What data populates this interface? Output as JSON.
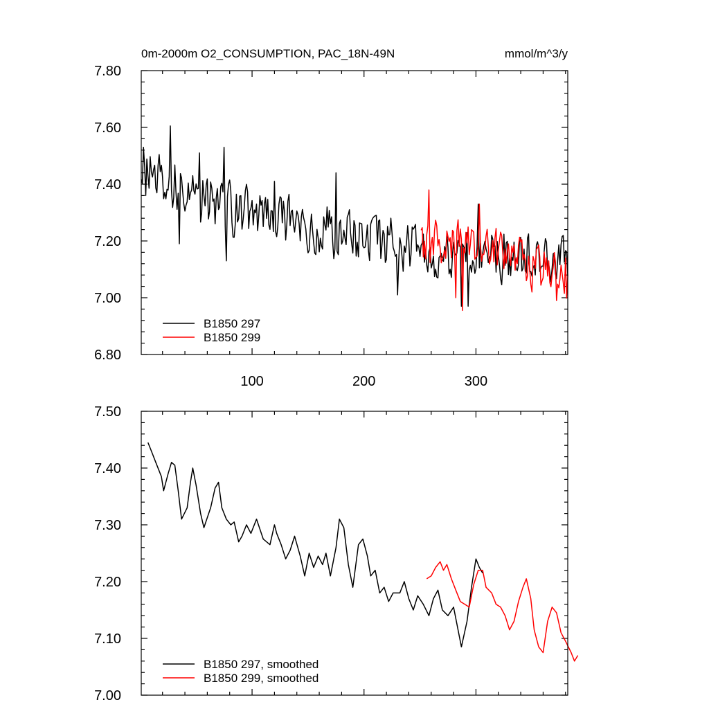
{
  "title": {
    "main": "0m-2000m O2_CONSUMPTION, PAC_18N-49N",
    "units": "mmol/m^3/y"
  },
  "chart_data": [
    {
      "type": "line",
      "panel": "top",
      "xlim": [
        1,
        382
      ],
      "ylim": [
        6.8,
        7.8
      ],
      "xticks": [
        100,
        200,
        300
      ],
      "xtick_labels": [
        "100",
        "200",
        "300"
      ],
      "yticks": [
        6.8,
        7.0,
        7.2,
        7.4,
        7.6,
        7.8
      ],
      "ytick_labels": [
        "6.80",
        "7.00",
        "7.20",
        "7.40",
        "7.60",
        "7.80"
      ],
      "legend": "bottom-left",
      "series": [
        {
          "name": "B1850 297",
          "color": "#000000",
          "x_start": 1,
          "trend": [
            [
              1,
              7.45
            ],
            [
              30,
              7.42
            ],
            [
              60,
              7.33
            ],
            [
              100,
              7.3
            ],
            [
              150,
              7.25
            ],
            [
              200,
              7.22
            ],
            [
              240,
              7.17
            ],
            [
              280,
              7.14
            ],
            [
              300,
              7.18
            ],
            [
              315,
              7.15
            ]
          ],
          "amplitude": 0.08,
          "seed": 297,
          "anchors": [
            [
              3,
              7.53
            ],
            [
              5,
              7.36
            ],
            [
              27,
              7.605
            ],
            [
              35,
              7.19
            ],
            [
              53,
              7.51
            ],
            [
              75,
              7.53
            ],
            [
              77,
              7.13
            ],
            [
              120,
              7.41
            ],
            [
              175,
              7.44
            ],
            [
              230,
              7.01
            ],
            [
              287,
              6.97
            ],
            [
              293,
              6.97
            ],
            [
              302,
              7.33
            ]
          ]
        },
        {
          "name": "B1850 299",
          "color": "#ff0000",
          "x_start": 251,
          "trend": [
            [
              251,
              7.2
            ],
            [
              300,
              7.19
            ],
            [
              340,
              7.13
            ],
            [
              382,
              7.07
            ]
          ],
          "amplitude": 0.07,
          "seed": 299,
          "anchors": [
            [
              258,
              7.38
            ],
            [
              282,
              7.0
            ],
            [
              288,
              6.955
            ],
            [
              303,
              7.33
            ],
            [
              350,
              7.02
            ],
            [
              372,
              6.99
            ],
            [
              380,
              7.14
            ]
          ]
        }
      ]
    },
    {
      "type": "line",
      "panel": "bottom",
      "xlim": [
        1,
        382
      ],
      "ylim": [
        7.0,
        7.5
      ],
      "xticks": [
        100,
        200,
        300
      ],
      "yticks": [
        7.0,
        7.1,
        7.2,
        7.3,
        7.4,
        7.5
      ],
      "ytick_labels": [
        "7.00",
        "7.10",
        "7.20",
        "7.30",
        "7.40",
        "7.50"
      ],
      "legend": "bottom-left",
      "series": [
        {
          "name": "B1850 297, smoothed",
          "color": "#000000",
          "points": [
            [
              7,
              7.445
            ],
            [
              10,
              7.43
            ],
            [
              14,
              7.41
            ],
            [
              19,
              7.385
            ],
            [
              21,
              7.36
            ],
            [
              25,
              7.39
            ],
            [
              28,
              7.41
            ],
            [
              31,
              7.405
            ],
            [
              34,
              7.36
            ],
            [
              37,
              7.31
            ],
            [
              42,
              7.33
            ],
            [
              45,
              7.375
            ],
            [
              47,
              7.4
            ],
            [
              50,
              7.37
            ],
            [
              54,
              7.32
            ],
            [
              57,
              7.295
            ],
            [
              63,
              7.33
            ],
            [
              67,
              7.365
            ],
            [
              70,
              7.375
            ],
            [
              73,
              7.33
            ],
            [
              77,
              7.31
            ],
            [
              81,
              7.3
            ],
            [
              84,
              7.305
            ],
            [
              88,
              7.27
            ],
            [
              91,
              7.28
            ],
            [
              95,
              7.3
            ],
            [
              99,
              7.285
            ],
            [
              104,
              7.31
            ],
            [
              110,
              7.275
            ],
            [
              116,
              7.265
            ],
            [
              120,
              7.3
            ],
            [
              122,
              7.285
            ],
            [
              126,
              7.265
            ],
            [
              130,
              7.24
            ],
            [
              134,
              7.255
            ],
            [
              138,
              7.28
            ],
            [
              143,
              7.245
            ],
            [
              147,
              7.21
            ],
            [
              151,
              7.25
            ],
            [
              155,
              7.225
            ],
            [
              159,
              7.245
            ],
            [
              163,
              7.23
            ],
            [
              166,
              7.25
            ],
            [
              170,
              7.21
            ],
            [
              175,
              7.26
            ],
            [
              178,
              7.31
            ],
            [
              182,
              7.295
            ],
            [
              186,
              7.23
            ],
            [
              190,
              7.19
            ],
            [
              195,
              7.265
            ],
            [
              199,
              7.275
            ],
            [
              203,
              7.245
            ],
            [
              206,
              7.21
            ],
            [
              210,
              7.22
            ],
            [
              214,
              7.18
            ],
            [
              218,
              7.19
            ],
            [
              222,
              7.165
            ],
            [
              226,
              7.18
            ],
            [
              232,
              7.18
            ],
            [
              236,
              7.2
            ],
            [
              240,
              7.17
            ],
            [
              244,
              7.15
            ],
            [
              248,
              7.175
            ],
            [
              253,
              7.16
            ],
            [
              258,
              7.14
            ],
            [
              262,
              7.17
            ],
            [
              266,
              7.185
            ],
            [
              270,
              7.15
            ],
            [
              275,
              7.14
            ],
            [
              280,
              7.155
            ],
            [
              287,
              7.085
            ],
            [
              292,
              7.13
            ],
            [
              296,
              7.19
            ],
            [
              300,
              7.24
            ],
            [
              303,
              7.225
            ],
            [
              306,
              7.215
            ]
          ]
        },
        {
          "name": "B1850 299, smoothed",
          "color": "#ff0000",
          "points": [
            [
              256,
              7.205
            ],
            [
              260,
              7.21
            ],
            [
              264,
              7.225
            ],
            [
              268,
              7.235
            ],
            [
              271,
              7.22
            ],
            [
              274,
              7.23
            ],
            [
              278,
              7.205
            ],
            [
              282,
              7.185
            ],
            [
              286,
              7.165
            ],
            [
              290,
              7.16
            ],
            [
              294,
              7.155
            ],
            [
              298,
              7.195
            ],
            [
              302,
              7.22
            ],
            [
              306,
              7.22
            ],
            [
              309,
              7.19
            ],
            [
              314,
              7.18
            ],
            [
              318,
              7.16
            ],
            [
              322,
              7.155
            ],
            [
              326,
              7.14
            ],
            [
              330,
              7.115
            ],
            [
              334,
              7.13
            ],
            [
              338,
              7.165
            ],
            [
              342,
              7.19
            ],
            [
              345,
              7.205
            ],
            [
              349,
              7.17
            ],
            [
              352,
              7.115
            ],
            [
              356,
              7.085
            ],
            [
              360,
              7.075
            ],
            [
              364,
              7.13
            ],
            [
              368,
              7.155
            ],
            [
              372,
              7.145
            ],
            [
              376,
              7.11
            ],
            [
              380,
              7.095
            ],
            [
              385,
              7.075
            ],
            [
              388,
              7.06
            ],
            [
              391,
              7.07
            ]
          ]
        }
      ]
    }
  ]
}
